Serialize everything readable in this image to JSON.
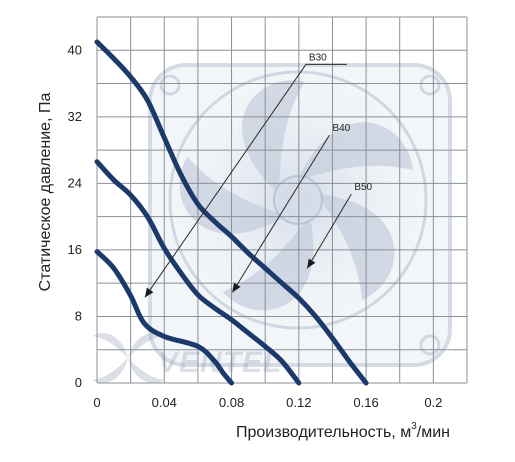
{
  "chart_data": {
    "type": "line",
    "xlabel": "Производительность, м",
    "xlabel_superscript": "3",
    "xlabel_suffix": "/мин",
    "ylabel": "Статическое давление, Па",
    "xlim": [
      0,
      0.22
    ],
    "ylim": [
      0,
      44
    ],
    "x_ticks": [
      0,
      0.04,
      0.08,
      0.12,
      0.16,
      0.2
    ],
    "x_tick_labels": [
      "0",
      "0.04",
      "0.08",
      "0.12",
      "0.16",
      "0.2"
    ],
    "y_ticks": [
      0,
      8,
      16,
      24,
      32,
      40
    ],
    "y_tick_labels": [
      "0",
      "8",
      "16",
      "24",
      "32",
      "40"
    ],
    "grid": true,
    "grid_x_step": 0.02,
    "grid_y_step": 4,
    "line_color": "#1b3a6b",
    "watermark_text": "VENTEL",
    "series": [
      {
        "name": "B30",
        "x": [
          0,
          0.01,
          0.02,
          0.028,
          0.04,
          0.06,
          0.07,
          0.075,
          0.08
        ],
        "y": [
          15.8,
          13.8,
          10.5,
          7.2,
          5.6,
          4.4,
          2.6,
          1.2,
          0
        ]
      },
      {
        "name": "B40",
        "x": [
          0,
          0.01,
          0.02,
          0.03,
          0.04,
          0.05,
          0.06,
          0.07,
          0.08,
          0.09,
          0.1,
          0.11,
          0.12
        ],
        "y": [
          26.6,
          24.4,
          22.6,
          20,
          16.2,
          13.2,
          10.6,
          9,
          7.6,
          6,
          4.4,
          2.6,
          0
        ]
      },
      {
        "name": "B50",
        "x": [
          0,
          0.01,
          0.02,
          0.03,
          0.04,
          0.05,
          0.06,
          0.07,
          0.08,
          0.09,
          0.1,
          0.11,
          0.12,
          0.13,
          0.14,
          0.15,
          0.16
        ],
        "y": [
          41,
          39,
          36.8,
          34,
          29.5,
          25,
          21.5,
          19.4,
          17.6,
          15.6,
          13.8,
          12,
          10.2,
          8,
          5.4,
          2.6,
          0
        ]
      }
    ],
    "annotations": [
      {
        "label": "B30",
        "series": "B30",
        "label_x": 0.126,
        "label_y": 38.3,
        "tip_x": 0.0285,
        "tip_y": 10.3
      },
      {
        "label": "B40",
        "series": "B40",
        "label_x": 0.14,
        "label_y": 29.8,
        "tip_x": 0.0805,
        "tip_y": 10.9
      },
      {
        "label": "B50",
        "series": "B50",
        "label_x": 0.153,
        "label_y": 22.7,
        "tip_x": 0.125,
        "tip_y": 13.8
      }
    ]
  }
}
